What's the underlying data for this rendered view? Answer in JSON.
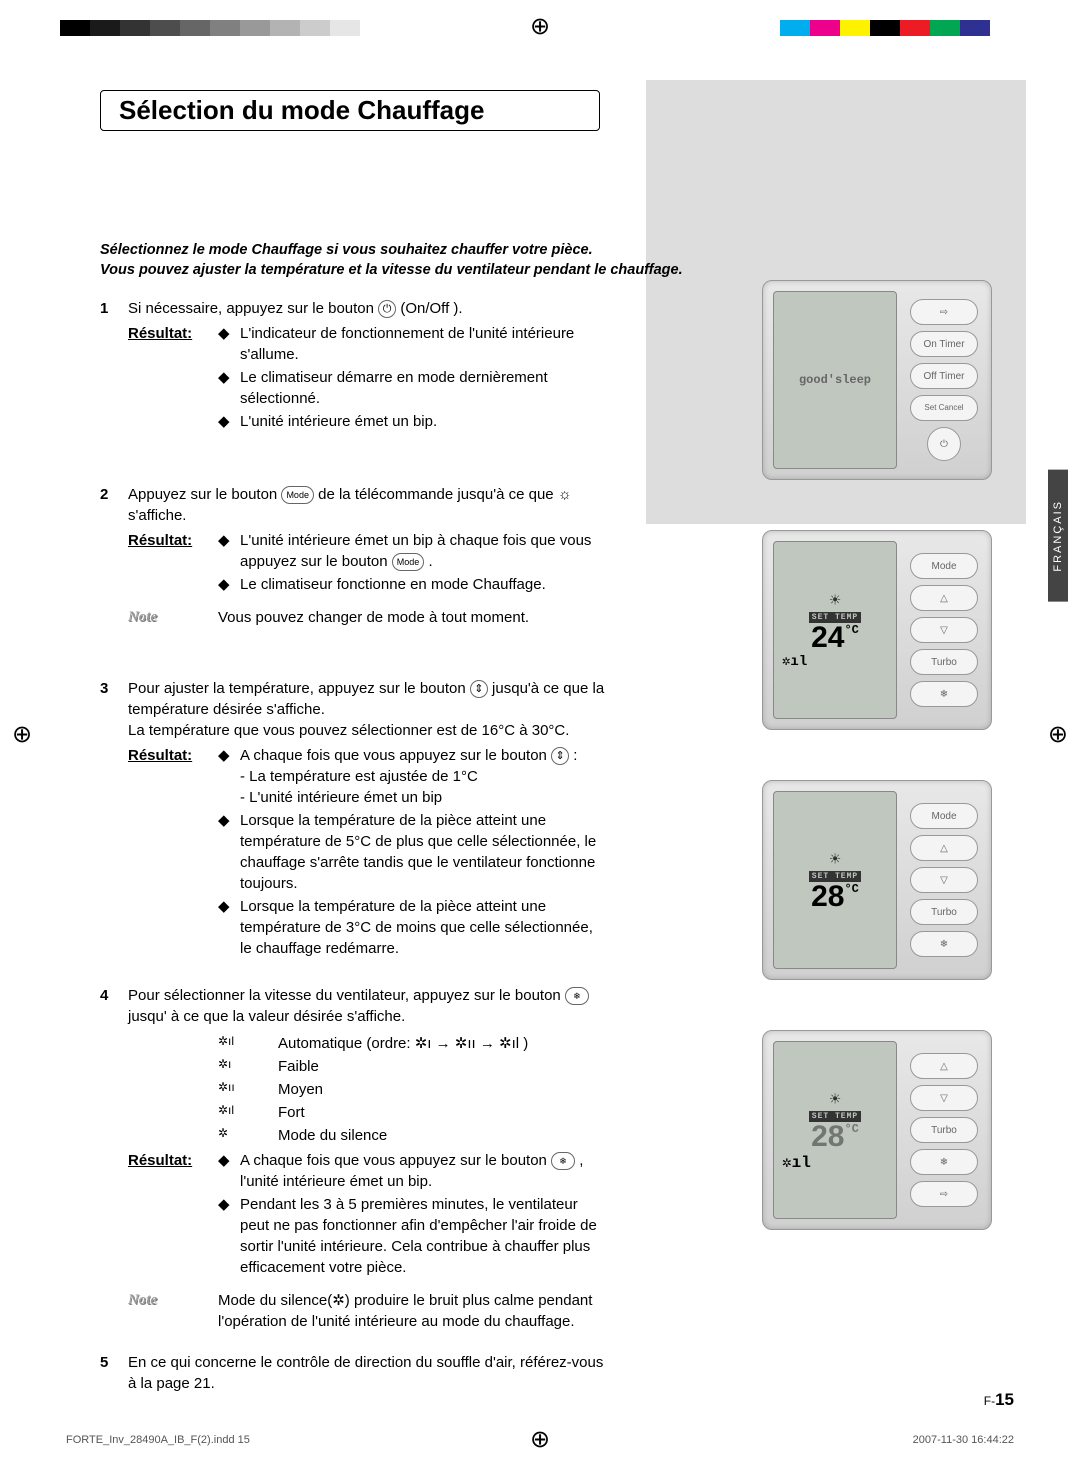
{
  "registration_marks": {
    "color": "#000"
  },
  "color_bar_left": [
    "#000000",
    "#1a1a1a",
    "#333333",
    "#4d4d4d",
    "#666666",
    "#808080",
    "#999999",
    "#b3b3b3",
    "#cccccc",
    "#e6e6e6",
    "#ffffff"
  ],
  "color_bar_right": [
    "#00aeef",
    "#ec008c",
    "#fff200",
    "#000000",
    "#ed1c24",
    "#00a651",
    "#2e3192",
    "#ffffff"
  ],
  "gray_sidebar_bg": "#dddddd",
  "lang_tab": "FRANÇAIS",
  "heading": "Sélection du mode Chauffage",
  "intro_line1": "Sélectionnez le mode Chauffage si vous souhaitez chauffer votre pièce.",
  "intro_line2": "Vous pouvez ajuster la température et la vitesse du ventilateur pendant le chauffage.",
  "steps": {
    "s1": {
      "num": "1",
      "text_a": "Si nécessaire, appuyez sur le bouton ",
      "text_b": " (On/Off ).",
      "res_label": "Résultat:",
      "r1": "L'indicateur de fonctionnement de l'unité intérieure s'allume.",
      "r2": "Le climatiseur démarre en mode dernièrement sélectionné.",
      "r3": "L'unité intérieure émet un bip."
    },
    "s2": {
      "num": "2",
      "text_a": "Appuyez sur le bouton ",
      "text_b": " de la télécommande jusqu'à ce que ",
      "text_c": " s'affiche.",
      "mode_btn": "Mode",
      "res_label": "Résultat:",
      "r1a": "L'unité intérieure émet un bip à chaque fois que vous appuyez sur le bouton ",
      "r1b": " .",
      "r2": "Le climatiseur fonctionne en mode Chauffage.",
      "note_label": "Note",
      "note": "Vous pouvez changer de mode à tout moment."
    },
    "s3": {
      "num": "3",
      "text_a": "Pour ajuster la température, appuyez sur le bouton ",
      "text_b": " jusqu'à ce que la température désirée s'affiche.",
      "range": "La température que vous pouvez sélectionner est de 16°C à 30°C.",
      "res_label": "Résultat:",
      "r1a": "A chaque fois que vous appuyez sur le bouton ",
      "r1b": " :",
      "r1_sub1": "- La température est ajustée de 1°C",
      "r1_sub2": "- L'unité intérieure émet un bip",
      "r2": "Lorsque la température de la pièce atteint une température de 5°C de plus que celle sélectionnée, le chauffage s'arrête tandis que le ventilateur fonctionne toujours.",
      "r3": "Lorsque la température de la pièce atteint une température de 3°C de moins que celle sélectionnée, le chauffage redémarre."
    },
    "s4": {
      "num": "4",
      "text_a": "Pour sélectionner la vitesse du ventilateur, appuyez sur le bouton ",
      "text_b": " jusqu' à ce que la valeur désirée s'affiche.",
      "fan1_icon": "✲ıl",
      "fan1": "Automatique (ordre:  ✲ı → ✲ıı → ✲ıl )",
      "fan2_icon": "✲ı",
      "fan2": "Faible",
      "fan3_icon": "✲ıı",
      "fan3": "Moyen",
      "fan4_icon": "✲ıl",
      "fan4": "Fort",
      "fan5_icon": "✲",
      "fan5": "Mode du silence",
      "res_label": "Résultat:",
      "r1a": "A chaque fois que vous appuyez sur le bouton ",
      "r1b": " , l'unité intérieure émet un bip.",
      "r2": "Pendant les 3 à 5 premières minutes, le ventilateur peut ne pas fonctionner afin d'empêcher l'air froide de sortir l'unité intérieure. Cela contribue à chauffer plus efficacement votre pièce.",
      "note_label": "Note",
      "note": "Mode du silence(✲) produire le bruit plus calme pendant l'opération de l'unité intérieure au mode du chauffage."
    },
    "s5": {
      "num": "5",
      "text": "En ce qui concerne le contrôle de direction du souffle d'air, référez-vous à la page 21."
    }
  },
  "remotes": {
    "r1": {
      "lcd_text": "good'sleep",
      "b1": "⇨",
      "b2": "On Timer",
      "b3": "Off Timer",
      "b4": "Set\nCancel",
      "b5": "⏻"
    },
    "r2": {
      "settemp": "SET TEMP",
      "temp": "24",
      "unit": "°C",
      "fan": "✲ıl",
      "b1": "Mode",
      "b2": "△",
      "b3": "▽",
      "b4": "Turbo",
      "b5": "❄"
    },
    "r3": {
      "settemp": "SET TEMP",
      "temp": "28",
      "unit": "°C",
      "b1": "Mode",
      "b2": "△",
      "b3": "▽",
      "b4": "Turbo",
      "b5": "❄"
    },
    "r4": {
      "settemp": "SET TEMP",
      "temp": "28",
      "unit": "°C",
      "fan": "✲ıl",
      "b1": "△",
      "b2": "▽",
      "b3": "Turbo",
      "b4": "❄",
      "b5": "⇨"
    }
  },
  "pagenum_prefix": "F-",
  "pagenum": "15",
  "footer_left": "FORTE_Inv_28490A_IB_F(2).indd   15",
  "footer_right": "2007-11-30   16:44:22"
}
